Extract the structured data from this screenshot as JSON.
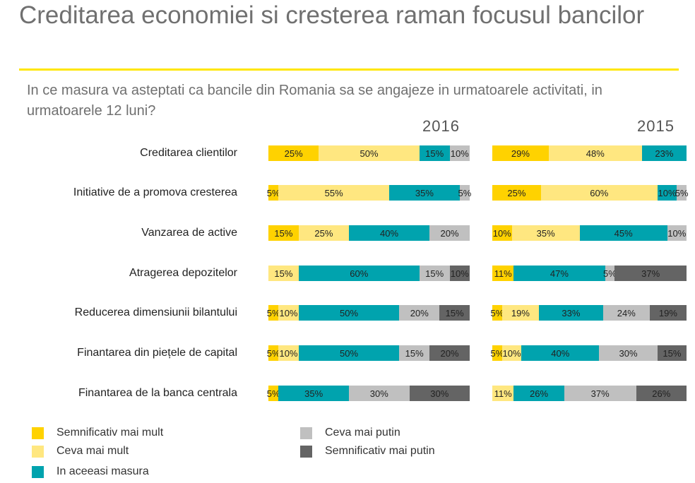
{
  "title": "Creditarea economiei si cresterea raman focusul bancilor",
  "subtitle": "In ce masura va asteptati ca bancile din Romania sa se angajeze in urmatoarele activitati, in urmatoarele 12 luni?",
  "chart_data": {
    "type": "bar",
    "orientation": "horizontal-stacked-100",
    "title": "Creditarea economiei si cresterea raman focusul bancilor",
    "categories": [
      "Creditarea clientilor",
      "Initiative de a promova cresterea",
      "Vanzarea de active",
      "Atragerea depozitelor",
      "Reducerea dimensiunii bilantului",
      "Finantarea din piețele de capital",
      "Finantarea de la banca centrala"
    ],
    "legend": [
      {
        "name": "Semnificativ mai mult",
        "color": "#FFD200"
      },
      {
        "name": "Ceva mai mult",
        "color": "#FFE780"
      },
      {
        "name": "In aceeasi masura",
        "color": "#00A3AE"
      },
      {
        "name": "Ceva mai putin",
        "color": "#C0C0C0"
      },
      {
        "name": "Semnificativ mai putin",
        "color": "#646464"
      }
    ],
    "panels": [
      {
        "year": "2016",
        "values": [
          [
            25,
            50,
            15,
            10,
            0
          ],
          [
            5,
            55,
            35,
            5,
            0
          ],
          [
            15,
            25,
            40,
            20,
            0
          ],
          [
            0,
            15,
            60,
            15,
            10
          ],
          [
            5,
            10,
            50,
            20,
            15
          ],
          [
            5,
            10,
            50,
            15,
            20
          ],
          [
            5,
            0,
            35,
            30,
            30
          ]
        ]
      },
      {
        "year": "2015",
        "values": [
          [
            29,
            48,
            23,
            0,
            0
          ],
          [
            25,
            60,
            10,
            5,
            0
          ],
          [
            10,
            35,
            45,
            10,
            0
          ],
          [
            11,
            0,
            47,
            5,
            37
          ],
          [
            5,
            19,
            33,
            24,
            19
          ],
          [
            5,
            10,
            40,
            30,
            15
          ],
          [
            0,
            11,
            26,
            37,
            26
          ]
        ]
      }
    ],
    "unit": "%"
  }
}
